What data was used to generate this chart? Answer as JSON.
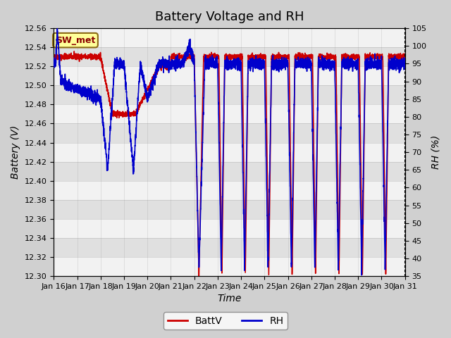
{
  "title": "Battery Voltage and RH",
  "xlabel": "Time",
  "ylabel_left": "Battery (V)",
  "ylabel_right": "RH (%)",
  "annotation": "SW_met",
  "ylim_left": [
    12.3,
    12.56
  ],
  "ylim_right": [
    35,
    105
  ],
  "yticks_left": [
    12.3,
    12.32,
    12.34,
    12.36,
    12.38,
    12.4,
    12.42,
    12.44,
    12.46,
    12.48,
    12.5,
    12.52,
    12.54,
    12.56
  ],
  "yticks_right": [
    35,
    40,
    45,
    50,
    55,
    60,
    65,
    70,
    75,
    80,
    85,
    90,
    95,
    100,
    105
  ],
  "xtick_labels": [
    "Jan 16",
    "Jan 17",
    "Jan 18",
    "Jan 19",
    "Jan 20",
    "Jan 21",
    "Jan 22",
    "Jan 23",
    "Jan 24",
    "Jan 25",
    "Jan 26",
    "Jan 27",
    "Jan 28",
    "Jan 29",
    "Jan 30",
    "Jan 31"
  ],
  "color_batt": "#cc0000",
  "color_rh": "#0000cc",
  "legend_labels": [
    "BattV",
    "RH"
  ],
  "title_fontsize": 13,
  "axis_fontsize": 10,
  "tick_fontsize": 8.0
}
